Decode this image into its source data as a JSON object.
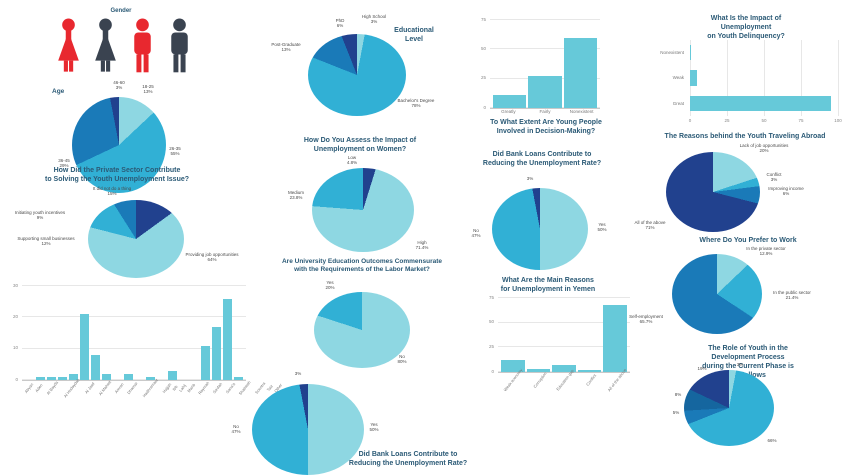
{
  "colors": {
    "red": "#e8282f",
    "dark_gray": "#3a4350",
    "light_cyan": "#8ed7e2",
    "cyan": "#31b0d5",
    "blue": "#1a7ab8",
    "blue_dark": "#15669f",
    "navy": "#21418e",
    "bar_cyan": "#66c9d9",
    "title": "#2b5a76"
  },
  "chart_data": [
    {
      "id": "gender",
      "type": "pictogram",
      "title": "Gender",
      "icons": [
        {
          "sex": "female",
          "color": "#e8282f"
        },
        {
          "sex": "female",
          "color": "#3a4350"
        },
        {
          "sex": "male",
          "color": "#e8282f"
        },
        {
          "sex": "male",
          "color": "#3a4350"
        }
      ]
    },
    {
      "id": "age",
      "type": "pie",
      "title": "Age",
      "slices": [
        {
          "label": "18-25",
          "value": 13,
          "color": "#8ed7e2"
        },
        {
          "label": "26-35",
          "value": 55,
          "color": "#31b0d5"
        },
        {
          "label": "36-45",
          "value": 29,
          "color": "#1a7ab8"
        },
        {
          "label": "46-60",
          "value": 3,
          "color": "#21418e"
        }
      ],
      "labels": [
        "46-60\n3%",
        "18-25\n13%",
        "26-35\n55%",
        "36-45\n29%"
      ]
    },
    {
      "id": "private_sector",
      "type": "pie",
      "title": "How Did the Private Sector Contribute\nto Solving the Youth Unemployment Issue?",
      "slices": [
        {
          "label": "It did not do a thing",
          "value": 15,
          "color": "#21418e"
        },
        {
          "label": "Providing job opportunities",
          "value": 64,
          "color": "#8ed7e2"
        },
        {
          "label": "Supporting small businesses",
          "value": 12,
          "color": "#31b0d5"
        },
        {
          "label": "Initiating youth incentives",
          "value": 9,
          "color": "#1a7ab8"
        }
      ],
      "labels": [
        "It did not do a thing\n15%",
        "Initiating youth incentives\n9%",
        "Supporting small businesses\n12%",
        "Providing job opportunities\n64%"
      ]
    },
    {
      "id": "residence",
      "type": "bar",
      "title": "",
      "categories": [
        "Abyan",
        "Aden",
        "Al Bayda",
        "Al Hudaydah",
        "Al Jawf",
        "Al Mahwit",
        "Amran",
        "Dhamar",
        "Hadhramaut",
        "Hajjah",
        "Ibb",
        "Lahij",
        "Marib",
        "Raymah",
        "Sa'dah",
        "Sana'a",
        "Shabwah",
        "Socotra",
        "Taiz",
        "Other"
      ],
      "values": [
        0,
        1,
        1,
        1,
        2,
        21,
        8,
        2,
        0,
        2,
        0,
        1,
        0,
        3,
        0,
        0,
        11,
        17,
        26,
        1
      ],
      "ymax": 30,
      "yticks": [
        0,
        10,
        20,
        30
      ],
      "bar_color": "#66c9d9",
      "rotate_labels": true
    },
    {
      "id": "education",
      "type": "pie",
      "title": "Educational\nLevel",
      "slices": [
        {
          "label": "High School",
          "value": 3,
          "color": "#8ed7e2"
        },
        {
          "label": "Bachelor's Degree",
          "value": 78,
          "color": "#31b0d5"
        },
        {
          "label": "Post-Graduate",
          "value": 13,
          "color": "#1a7ab8"
        },
        {
          "label": "PhD",
          "value": 6,
          "color": "#21418e"
        }
      ],
      "labels": [
        "PhD\n6%",
        "High School\n3%",
        "Post-Graduate\n13%",
        "Bachelor's Degree\n78%"
      ]
    },
    {
      "id": "women",
      "type": "pie",
      "title": "How Do You Assess the Impact of\nUnemployment on Women?",
      "slices": [
        {
          "label": "Low",
          "value": 4.8,
          "color": "#21418e"
        },
        {
          "label": "High",
          "value": 71.4,
          "color": "#8ed7e2"
        },
        {
          "label": "Medium",
          "value": 23.8,
          "color": "#31b0d5"
        }
      ],
      "labels": [
        "Low\n4.8%",
        "Medium\n23.8%",
        "High\n71.4%"
      ]
    },
    {
      "id": "university",
      "type": "pie",
      "title": "Are University Education Outcomes Commensurate\nwith the Requirements of the Labor Market?",
      "slices": [
        {
          "label": "No",
          "value": 80,
          "color": "#8ed7e2"
        },
        {
          "label": "Yes",
          "value": 20,
          "color": "#31b0d5"
        }
      ],
      "labels": [
        "Yes\n20%",
        "No\n80%"
      ]
    },
    {
      "id": "bank_loans_mid",
      "type": "pie",
      "title": "Did Bank Loans Contribute to\nReducing the Unemployment Rate?",
      "slices": [
        {
          "label": "Yes",
          "value": 50,
          "color": "#8ed7e2"
        },
        {
          "label": "No",
          "value": 47,
          "color": "#31b0d5"
        },
        {
          "label": "Unsure",
          "value": 3,
          "color": "#21418e"
        }
      ],
      "labels": [
        "3%",
        "No\n47%",
        "Yes\n50%"
      ]
    },
    {
      "id": "decision",
      "type": "bar",
      "title": "To What Extent Are Young People\nInvolved in Decision-Making?",
      "categories": [
        "Greatly",
        "Fairly",
        "Nonexistent"
      ],
      "values": [
        11,
        27,
        60
      ],
      "ymax": 75,
      "yticks": [
        0,
        25,
        50,
        75
      ],
      "bar_color": "#66c9d9",
      "rotate_labels": false
    },
    {
      "id": "bank_loans",
      "type": "pie",
      "title": "Did Bank Loans Contribute to\nReducing the Unemployment Rate?",
      "slices": [
        {
          "label": "Yes",
          "value": 50,
          "color": "#8ed7e2"
        },
        {
          "label": "No",
          "value": 47,
          "color": "#31b0d5"
        },
        {
          "label": "Unsure",
          "value": 3,
          "color": "#21418e"
        }
      ],
      "labels": [
        "3%",
        "No\n47%",
        "Yes\n50%"
      ]
    },
    {
      "id": "reasons",
      "type": "bar",
      "title": "What Are the Main Reasons\nfor Unemployment in Yemen",
      "categories": [
        "Weak economy",
        "Corruption",
        "Education gap",
        "Conflict",
        "All of the above"
      ],
      "values": [
        12,
        3,
        7,
        2,
        68
      ],
      "ymax": 75,
      "yticks": [
        0,
        25,
        50,
        75
      ],
      "bar_color": "#66c9d9",
      "rotate_labels": true
    },
    {
      "id": "delinquency",
      "type": "hbar",
      "title": "What Is the Impact of Unemployment\non Youth Delinquency?",
      "categories": [
        "Nonexistent",
        "Weak",
        "Great"
      ],
      "values": [
        1,
        5,
        95
      ],
      "xmax": 100,
      "xticks": [
        0,
        25,
        50,
        75,
        100
      ],
      "bar_color": "#66c9d9"
    },
    {
      "id": "travel",
      "type": "pie",
      "title": "The Reasons behind the Youth Traveling Abroad",
      "slices": [
        {
          "label": "Lack of job opportunities",
          "value": 20,
          "color": "#8ed7e2"
        },
        {
          "label": "Conflict",
          "value": 3,
          "color": "#31b0d5"
        },
        {
          "label": "Improving income",
          "value": 6,
          "color": "#1a7ab8"
        },
        {
          "label": "All of the above",
          "value": 71,
          "color": "#21418e"
        }
      ],
      "labels": [
        "Lack of job opportunities\n20%",
        "Conflict\n3%",
        "Improving income\n6%",
        "All of the above\n71%"
      ]
    },
    {
      "id": "work_pref",
      "type": "pie",
      "title": "Where Do You Prefer to Work",
      "slices": [
        {
          "label": "In the private sector",
          "value": 12.9,
          "color": "#8ed7e2"
        },
        {
          "label": "In the public sector",
          "value": 21.4,
          "color": "#31b0d5"
        },
        {
          "label": "Self-employment",
          "value": 65.7,
          "color": "#1a7ab8"
        }
      ],
      "labels": [
        "In the private sector\n12.9%",
        "In the public sector\n21.4%",
        "Self-employment\n65.7%"
      ]
    },
    {
      "id": "youth_role",
      "type": "pie",
      "title": "The Role of Youth in the Development Process\nduring the Current Phase is as Follows",
      "slices": [
        {
          "label": "3%",
          "value": 3,
          "color": "#8ed7e2"
        },
        {
          "label": "66%",
          "value": 66,
          "color": "#31b0d5"
        },
        {
          "label": "5%",
          "value": 5,
          "color": "#1a7ab8"
        },
        {
          "label": "8%",
          "value": 8,
          "color": "#15669f"
        },
        {
          "label": "19%",
          "value": 19,
          "color": "#21418e"
        }
      ],
      "labels": [
        "3%",
        "19%",
        "8%",
        "5%",
        "66%"
      ]
    }
  ]
}
